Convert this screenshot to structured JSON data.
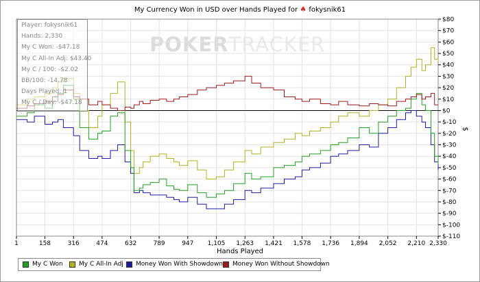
{
  "header": {
    "title": "My Currency Won in USD over Hands Played for",
    "title_icon": "poker-spade-logo-icon",
    "player_name": "fokysnik61"
  },
  "watermark": {
    "left": "PO",
    "mid": "KER",
    "right": "TRACKER"
  },
  "stats": {
    "player": "Player: fokysnik61",
    "hands": "Hands: 2,330",
    "won": "My C Won: -$47.18",
    "allin": "My C All-In Adj: $43.40",
    "per100": "My C / 100: -$2.02",
    "bb100": "BB/100: -14.78",
    "days": "Days Played: 1",
    "day": "My C / Day: -$47.18"
  },
  "colors": {
    "won": "#20a020",
    "allin": "#b0b020",
    "showdown": "#1a1aa0",
    "noshowdown": "#a01a1a",
    "grid": "#e2e2e2"
  },
  "chart_data": {
    "type": "line",
    "title": "My Currency Won in USD over Hands Played for fokysnik61",
    "xlabel": "Hands Played",
    "ylabel": "$",
    "xlim": [
      1,
      2330
    ],
    "ylim": [
      -110,
      80
    ],
    "x_ticks": [
      1,
      158,
      316,
      474,
      632,
      789,
      947,
      1105,
      1263,
      1421,
      1578,
      1736,
      1894,
      2052,
      2210,
      2330
    ],
    "x_tick_labels": [
      "1",
      "158",
      "316",
      "474",
      "632",
      "789",
      "947",
      "1,105",
      "1,263",
      "1,421",
      "1,578",
      "1,736",
      "1,894",
      "2,052",
      "2,210",
      "2,330"
    ],
    "y_ticks": [
      80,
      70,
      60,
      50,
      40,
      30,
      20,
      10,
      0,
      -10,
      -20,
      -30,
      -40,
      -50,
      -60,
      -70,
      -80,
      -90,
      -100,
      -110
    ],
    "y_tick_labels": [
      "$80",
      "$70",
      "$60",
      "$50",
      "$40",
      "$30",
      "$20",
      "$10",
      "$0",
      "$-10",
      "$-20",
      "$-30",
      "$-40",
      "$-50",
      "$-60",
      "$-70",
      "$-80",
      "$-90",
      "$-100",
      "$-110"
    ],
    "grid": true,
    "legend_position": "bottom-left",
    "series": [
      {
        "name": "My C Won",
        "x": [
          1,
          60,
          100,
          158,
          200,
          230,
          260,
          316,
          350,
          400,
          450,
          474,
          520,
          560,
          600,
          632,
          650,
          680,
          700,
          740,
          789,
          830,
          870,
          900,
          947,
          1000,
          1050,
          1105,
          1150,
          1200,
          1263,
          1300,
          1350,
          1421,
          1480,
          1540,
          1578,
          1620,
          1680,
          1736,
          1780,
          1830,
          1894,
          1950,
          2000,
          2052,
          2100,
          2150,
          2180,
          2210,
          2240,
          2260,
          2290,
          2310,
          2330
        ],
        "y": [
          -5,
          -2,
          5,
          2,
          8,
          15,
          22,
          10,
          -15,
          -25,
          -20,
          -18,
          -5,
          -2,
          -35,
          -50,
          -70,
          -68,
          -65,
          -63,
          -60,
          -66,
          -69,
          -70,
          -65,
          -72,
          -76,
          -73,
          -70,
          -64,
          -55,
          -60,
          -58,
          -50,
          -48,
          -45,
          -40,
          -38,
          -35,
          -30,
          -28,
          -24,
          -15,
          -20,
          -10,
          -5,
          0,
          2,
          10,
          15,
          5,
          0,
          -20,
          -40,
          -47
        ]
      },
      {
        "name": "My C All-In Adj",
        "x": [
          1,
          60,
          100,
          158,
          200,
          230,
          260,
          316,
          350,
          400,
          450,
          474,
          520,
          560,
          600,
          632,
          650,
          680,
          700,
          740,
          789,
          830,
          870,
          900,
          947,
          1000,
          1050,
          1105,
          1150,
          1200,
          1263,
          1300,
          1350,
          1421,
          1480,
          1540,
          1578,
          1620,
          1680,
          1736,
          1780,
          1830,
          1894,
          1950,
          2000,
          2052,
          2100,
          2150,
          2180,
          2210,
          2240,
          2260,
          2290,
          2310,
          2330
        ],
        "y": [
          5,
          10,
          12,
          15,
          20,
          25,
          28,
          15,
          0,
          -15,
          -5,
          5,
          15,
          25,
          -10,
          -35,
          -55,
          -50,
          -45,
          -40,
          -38,
          -42,
          -45,
          -48,
          -44,
          -52,
          -60,
          -58,
          -52,
          -45,
          -35,
          -38,
          -32,
          -28,
          -25,
          -20,
          -22,
          -18,
          -15,
          -10,
          -5,
          -2,
          -5,
          0,
          5,
          10,
          20,
          30,
          38,
          45,
          35,
          40,
          55,
          45,
          43
        ]
      },
      {
        "name": "Money Won With Showdown",
        "x": [
          1,
          60,
          100,
          158,
          200,
          230,
          260,
          316,
          350,
          400,
          450,
          474,
          520,
          560,
          600,
          632,
          650,
          680,
          700,
          740,
          789,
          830,
          870,
          900,
          947,
          1000,
          1050,
          1105,
          1150,
          1200,
          1263,
          1300,
          1350,
          1421,
          1480,
          1540,
          1578,
          1620,
          1680,
          1736,
          1780,
          1830,
          1894,
          1950,
          2000,
          2052,
          2100,
          2150,
          2180,
          2210,
          2240,
          2260,
          2290,
          2310,
          2330
        ],
        "y": [
          -8,
          -10,
          -5,
          -12,
          -10,
          -8,
          -15,
          -22,
          -35,
          -42,
          -40,
          -42,
          -35,
          -30,
          -45,
          -55,
          -72,
          -70,
          -72,
          -74,
          -74,
          -76,
          -78,
          -80,
          -76,
          -82,
          -86,
          -86,
          -82,
          -78,
          -70,
          -72,
          -68,
          -64,
          -60,
          -58,
          -52,
          -50,
          -46,
          -40,
          -38,
          -35,
          -30,
          -32,
          -20,
          -15,
          -8,
          -2,
          0,
          -5,
          -10,
          -15,
          -30,
          -45,
          -52
        ]
      },
      {
        "name": "Money Won Without Showdown",
        "x": [
          1,
          60,
          100,
          158,
          200,
          230,
          260,
          316,
          350,
          400,
          450,
          474,
          520,
          560,
          600,
          632,
          650,
          680,
          700,
          740,
          789,
          830,
          870,
          900,
          947,
          1000,
          1050,
          1105,
          1150,
          1200,
          1263,
          1300,
          1350,
          1421,
          1480,
          1540,
          1578,
          1620,
          1680,
          1736,
          1780,
          1830,
          1894,
          1950,
          2000,
          2052,
          2100,
          2150,
          2180,
          2210,
          2240,
          2260,
          2290,
          2310,
          2330
        ],
        "y": [
          2,
          4,
          6,
          8,
          12,
          14,
          18,
          12,
          10,
          5,
          8,
          5,
          2,
          0,
          3,
          2,
          5,
          8,
          6,
          9,
          10,
          8,
          10,
          12,
          14,
          18,
          20,
          22,
          24,
          26,
          30,
          24,
          20,
          18,
          12,
          10,
          8,
          10,
          6,
          5,
          8,
          5,
          4,
          6,
          5,
          4,
          8,
          10,
          12,
          14,
          10,
          12,
          15,
          5,
          5
        ]
      }
    ]
  }
}
